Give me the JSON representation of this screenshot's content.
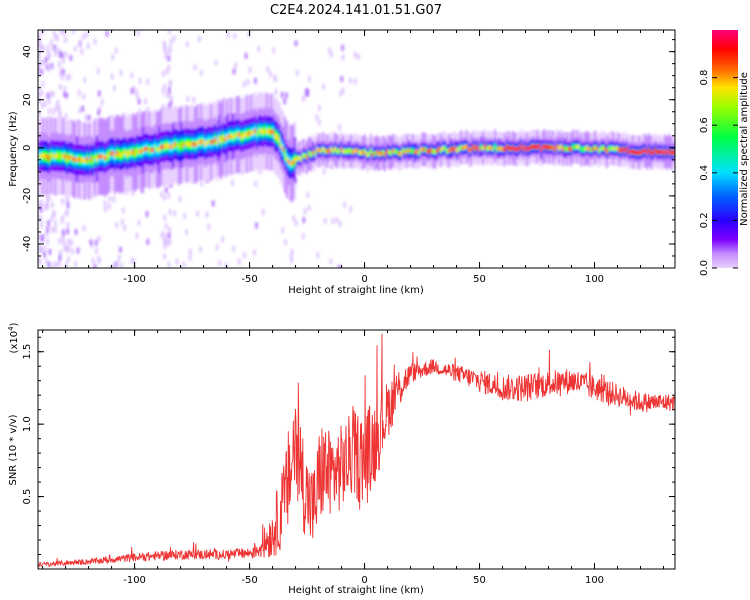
{
  "title": "C2E4.2024.141.01.51.G07",
  "chart_data": [
    {
      "type": "heatmap",
      "xlabel": "Height of straight line (km)",
      "ylabel": "Frequency (Hz)",
      "xlim": [
        -142,
        135
      ],
      "ylim": [
        -50,
        49
      ],
      "x_ticks": [
        -100,
        -50,
        0,
        50,
        100
      ],
      "y_ticks": [
        -40,
        -20,
        0,
        20,
        40
      ],
      "colorbar": {
        "label": "Normalized spectral amplitude",
        "range": [
          0,
          1
        ],
        "ticks": [
          0.0,
          0.2,
          0.4,
          0.6,
          0.8
        ],
        "colors": [
          "#e8d0ff",
          "#c58cff",
          "#7a00ff",
          "#2a00ff",
          "#0060ff",
          "#00e0ff",
          "#00ff40",
          "#a0ff00",
          "#ffe000",
          "#ff6000",
          "#ff0000",
          "#ff0080"
        ]
      },
      "ridge": {
        "x": [
          -142,
          -130,
          -120,
          -110,
          -100,
          -90,
          -80,
          -70,
          -60,
          -50,
          -45,
          -40,
          -37,
          -35,
          -33,
          -30,
          -25,
          -20,
          -10,
          0,
          10,
          30,
          50,
          70,
          90,
          110,
          135
        ],
        "frequency": [
          -4,
          -4,
          -5,
          -3,
          -2,
          0,
          1,
          2,
          4,
          6,
          7,
          6,
          2,
          -3,
          -7,
          -5,
          -3,
          -1,
          -1,
          -2,
          -2,
          -1,
          0,
          0,
          0,
          -1,
          -2
        ]
      }
    },
    {
      "type": "line",
      "xlabel": "Height of straight line (km)",
      "ylabel": "SNR (10 * v/v)",
      "y_multiplier": "(x10",
      "y_multiplier_exp": "4",
      "xlim": [
        -142,
        135
      ],
      "ylim": [
        0,
        16500
      ],
      "x_ticks": [
        -100,
        -50,
        0,
        50,
        100
      ],
      "y_ticks": [
        0.5,
        1.0,
        1.5
      ],
      "y_tick_labels": [
        "0.5",
        "1.0",
        "1.5"
      ],
      "series": [
        {
          "color": "#ee3333",
          "x": [
            -142,
            -120,
            -100,
            -80,
            -60,
            -50,
            -45,
            -40,
            -35,
            -32,
            -30,
            -28,
            -25,
            -22,
            -20,
            -18,
            -15,
            -10,
            -5,
            0,
            5,
            10,
            15,
            20,
            30,
            40,
            50,
            60,
            70,
            80,
            90,
            100,
            110,
            120,
            135
          ],
          "y": [
            300,
            500,
            800,
            1000,
            1000,
            1100,
            1500,
            2500,
            4500,
            7000,
            9000,
            7000,
            5000,
            4000,
            6000,
            7000,
            6500,
            7000,
            8000,
            7500,
            9000,
            11000,
            12500,
            13500,
            14000,
            13500,
            13000,
            12500,
            12500,
            12800,
            13000,
            12500,
            12000,
            11500,
            11500
          ],
          "amplitude": [
            150,
            200,
            300,
            350,
            350,
            400,
            800,
            1800,
            3000,
            4000,
            4500,
            4000,
            3000,
            3000,
            3500,
            3500,
            3000,
            3000,
            3000,
            3500,
            3000,
            2000,
            1500,
            700,
            500,
            600,
            800,
            900,
            1000,
            900,
            900,
            900,
            800,
            700,
            600
          ]
        }
      ]
    }
  ]
}
